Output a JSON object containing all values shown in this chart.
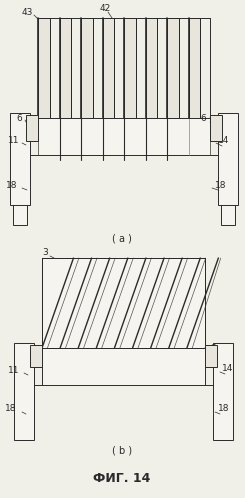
{
  "fig_width": 2.45,
  "fig_height": 4.98,
  "dpi": 100,
  "background_color": "#f0efe8",
  "title": "ФИГ. 14",
  "label_a": "( a )",
  "label_b": "( b )",
  "line_color": "#2a2a2a",
  "fill_light": "#e8e6dc",
  "fill_white": "#f5f4ee",
  "fill_gray": "#c8c6bc"
}
